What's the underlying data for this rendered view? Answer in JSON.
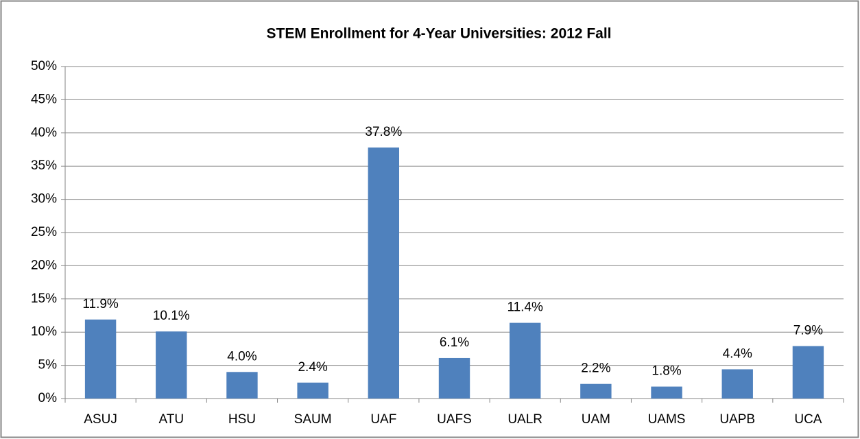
{
  "chart_data": {
    "type": "bar",
    "title": "STEM Enrollment for 4-Year Universities: 2012 Fall",
    "categories": [
      "ASUJ",
      "ATU",
      "HSU",
      "SAUM",
      "UAF",
      "UAFS",
      "UALR",
      "UAM",
      "UAMS",
      "UAPB",
      "UCA"
    ],
    "values": [
      11.9,
      10.1,
      4.0,
      2.4,
      37.8,
      6.1,
      11.4,
      2.2,
      1.8,
      4.4,
      7.9
    ],
    "value_labels": [
      "11.9%",
      "10.1%",
      "4.0%",
      "2.4%",
      "37.8%",
      "6.1%",
      "11.4%",
      "2.2%",
      "1.8%",
      "4.4%",
      "7.9%"
    ],
    "color": "#4f81bd",
    "ylim": [
      0,
      50
    ],
    "yticks": [
      {
        "value": 0,
        "label": "0%"
      },
      {
        "value": 5,
        "label": "5%"
      },
      {
        "value": 10,
        "label": "10%"
      },
      {
        "value": 15,
        "label": "15%"
      },
      {
        "value": 20,
        "label": "20%"
      },
      {
        "value": 25,
        "label": "25%"
      },
      {
        "value": 30,
        "label": "30%"
      },
      {
        "value": 35,
        "label": "35%"
      },
      {
        "value": 40,
        "label": "40%"
      },
      {
        "value": 45,
        "label": "45%"
      },
      {
        "value": 50,
        "label": "50%"
      }
    ],
    "grid": true
  }
}
